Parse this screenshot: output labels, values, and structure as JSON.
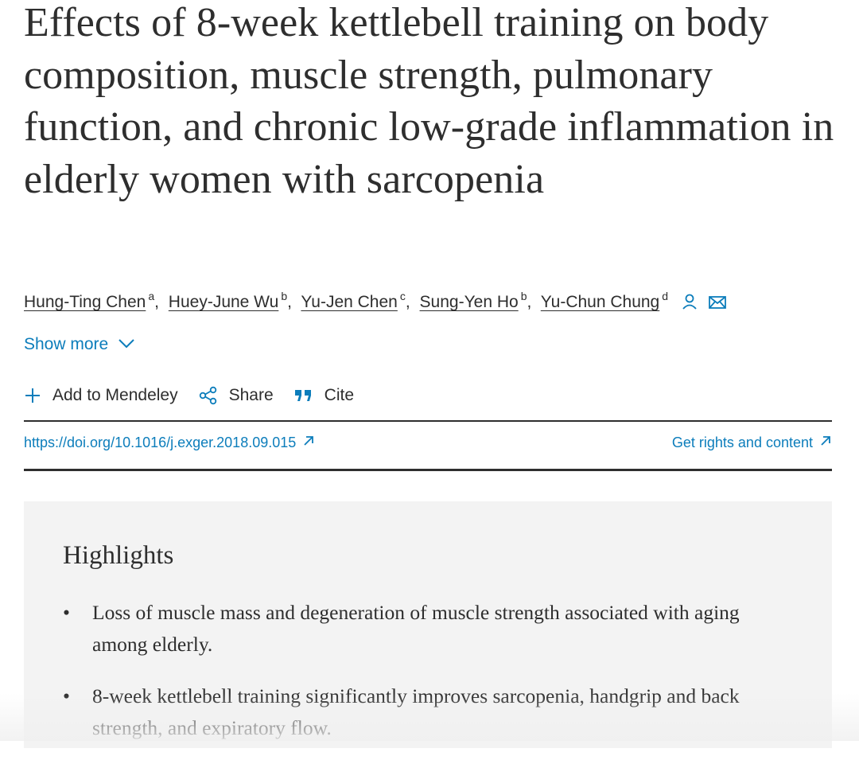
{
  "article": {
    "title": "Effects of 8-week kettlebell training on body composition, muscle strength, pulmonary function, and chronic low-grade inflammation in elderly women with sarcopenia",
    "authors": [
      {
        "name": "Hung-Ting Chen",
        "aff": "a"
      },
      {
        "name": "Huey-June Wu",
        "aff": "b"
      },
      {
        "name": "Yu-Jen Chen",
        "aff": "c"
      },
      {
        "name": "Sung-Yen Ho",
        "aff": "b"
      },
      {
        "name": "Yu-Chun Chung",
        "aff": "d"
      }
    ],
    "show_more_label": "Show more",
    "toolbar": {
      "mendeley_label": "Add to Mendeley",
      "share_label": "Share",
      "cite_label": "Cite"
    },
    "doi_link": "https://doi.org/10.1016/j.exger.2018.09.015",
    "rights_label": "Get rights and content"
  },
  "highlights": {
    "title": "Highlights",
    "items": [
      "Loss of muscle mass and degeneration of muscle strength associated with aging among elderly.",
      "8-week kettlebell training significantly improves sarcopenia, handgrip and back strength, and expiratory flow."
    ]
  },
  "colors": {
    "link": "#0c7dbb",
    "text": "#2e2e2e",
    "panel": "#f3f3f3"
  }
}
